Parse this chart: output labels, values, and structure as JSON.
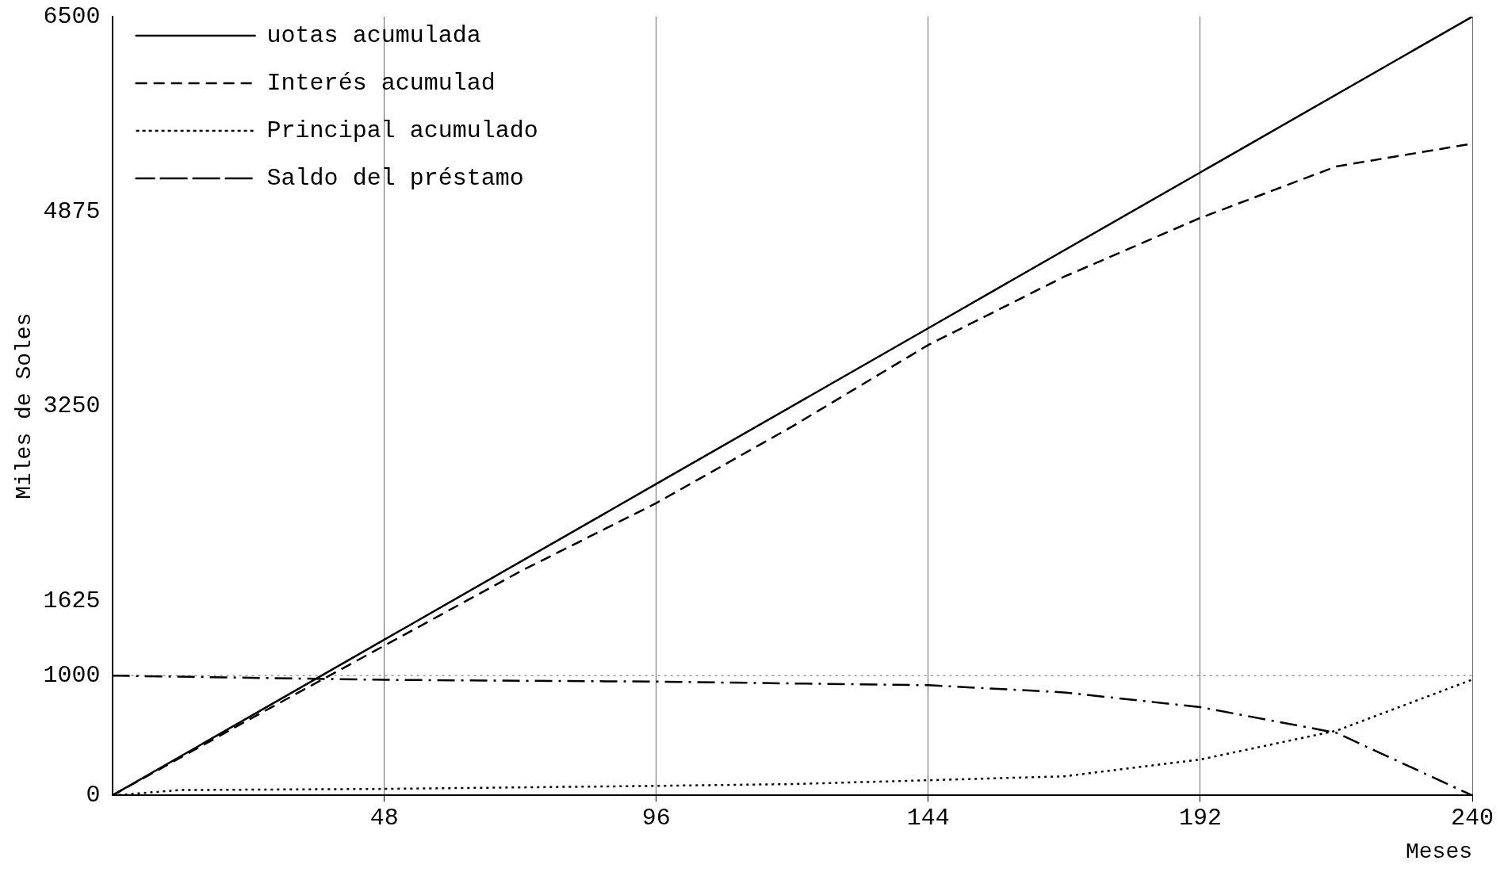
{
  "chart_data": {
    "type": "line",
    "xlabel": "Meses",
    "ylabel": "Miles de Soles",
    "xlim": [
      0,
      240
    ],
    "xticks": [
      48,
      96,
      144,
      192,
      240
    ],
    "ylim": [
      0,
      6500
    ],
    "yticks": [
      0,
      1000,
      1625,
      3250,
      4875,
      6500
    ],
    "grid": "x",
    "legend": "top left",
    "marker": "none",
    "ref_lines": [
      {
        "axis": "y",
        "value": 1000,
        "color": "#999999",
        "line_style": "dotted"
      }
    ],
    "series": [
      {
        "name": "uotas acumulada",
        "color": "#000000",
        "line_style": "solid",
        "x": [
          0,
          48,
          96,
          144,
          192,
          240
        ],
        "values": [
          0,
          1300,
          2600,
          3900,
          5200,
          6500
        ]
      },
      {
        "name": "Interés acumulad",
        "color": "#000000",
        "line_style": "dashed",
        "x": [
          0,
          24,
          48,
          72,
          96,
          120,
          144,
          168,
          192,
          216,
          240
        ],
        "values": [
          0,
          630,
          1250,
          1870,
          2440,
          3080,
          3760,
          4330,
          4820,
          5250,
          5440
        ]
      },
      {
        "name": "Principal acumulado",
        "color": "#000000",
        "line_style": "dotted",
        "x": [
          0,
          12,
          48,
          96,
          120,
          144,
          168,
          192,
          216,
          240
        ],
        "values": [
          0,
          45,
          55,
          80,
          95,
          127,
          160,
          300,
          540,
          967
        ]
      },
      {
        "name": "Saldo del préstamo",
        "color": "#000000",
        "line_style": "dashdot",
        "x": [
          0,
          48,
          96,
          144,
          168,
          192,
          216,
          240
        ],
        "values": [
          1000,
          965,
          950,
          920,
          860,
          737,
          523,
          0
        ]
      }
    ]
  }
}
